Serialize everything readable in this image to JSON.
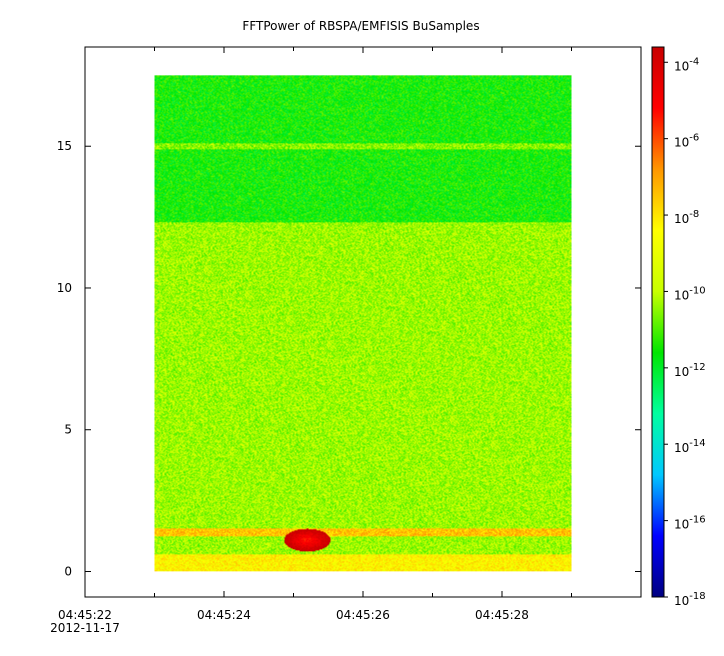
{
  "chart_data": {
    "type": "heatmap",
    "title": "FFTPower of RBSPA/EMFISIS  BuSamples",
    "xlabel": "",
    "ylabel": "",
    "x_ticks": [
      {
        "value": 22,
        "label": "04:45:22"
      },
      {
        "value": 24,
        "label": "04:45:24"
      },
      {
        "value": 26,
        "label": "04:45:26"
      },
      {
        "value": 28,
        "label": "04:45:28"
      }
    ],
    "x_date_label": "2012-11-17",
    "x_minor_ticks": [
      23,
      25,
      27,
      29
    ],
    "xlim": [
      22,
      30
    ],
    "y_ticks": [
      0,
      5,
      10,
      15
    ],
    "ylim": [
      -0.9,
      18.5
    ],
    "data_extent": {
      "x": [
        23,
        29
      ],
      "y": [
        0,
        17.5
      ]
    },
    "colorbar": {
      "scale": "log",
      "range_exponents": [
        -18,
        -3.6
      ],
      "ticks": [
        {
          "exponent": -4,
          "base": "10",
          "sup": "-4"
        },
        {
          "exponent": -6,
          "base": "10",
          "sup": "-6"
        },
        {
          "exponent": -8,
          "base": "10",
          "sup": "-8"
        },
        {
          "exponent": -10,
          "base": "10",
          "sup": "-10"
        },
        {
          "exponent": -12,
          "base": "10",
          "sup": "-12"
        },
        {
          "exponent": -14,
          "base": "10",
          "sup": "-14"
        },
        {
          "exponent": -16,
          "base": "10",
          "sup": "-16"
        },
        {
          "exponent": -18,
          "base": "10",
          "sup": "-18"
        }
      ],
      "colormap": [
        "#000080",
        "#0000ff",
        "#00c8ff",
        "#00ffa0",
        "#00e600",
        "#c8ff00",
        "#ffff00",
        "#ff9600",
        "#ff0000",
        "#c80000"
      ]
    },
    "bands": [
      {
        "y_range": [
          12.3,
          17.5
        ],
        "approx_log_power": -11.5,
        "description": "upper region"
      },
      {
        "y_range": [
          14.9,
          15.1
        ],
        "approx_log_power": -10.5,
        "description": "narrow line near 15"
      },
      {
        "y_range": [
          1.6,
          12.3
        ],
        "approx_log_power": -10.3,
        "description": "mid region"
      },
      {
        "y_range": [
          1.25,
          1.5
        ],
        "approx_log_power": -7.5,
        "description": "line near 1.4"
      },
      {
        "y_range": [
          0,
          0.6
        ],
        "approx_log_power": -8.3,
        "description": "bottom region"
      }
    ],
    "hotspots": [
      {
        "x": 25.2,
        "y": 1.1,
        "approx_log_power": -5.5
      }
    ],
    "grid": false,
    "legend": "colorbar-right"
  }
}
